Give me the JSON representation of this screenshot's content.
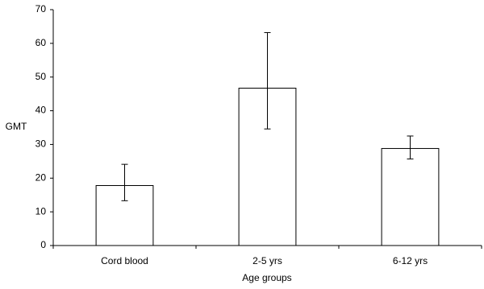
{
  "chart_data": {
    "type": "bar",
    "categories": [
      "Cord blood",
      "2-5 yrs",
      "6-12 yrs"
    ],
    "values": [
      17.8,
      46.7,
      28.8
    ],
    "lower": [
      13.3,
      34.6,
      25.7
    ],
    "upper": [
      24.1,
      63.2,
      32.5
    ],
    "color": "#ffffff",
    "y_label": "GMT",
    "x_label": "Age groups",
    "ylim": [
      0,
      70
    ],
    "yticks": [
      0,
      10,
      20,
      30,
      40,
      50,
      60,
      70
    ],
    "grid": false
  }
}
